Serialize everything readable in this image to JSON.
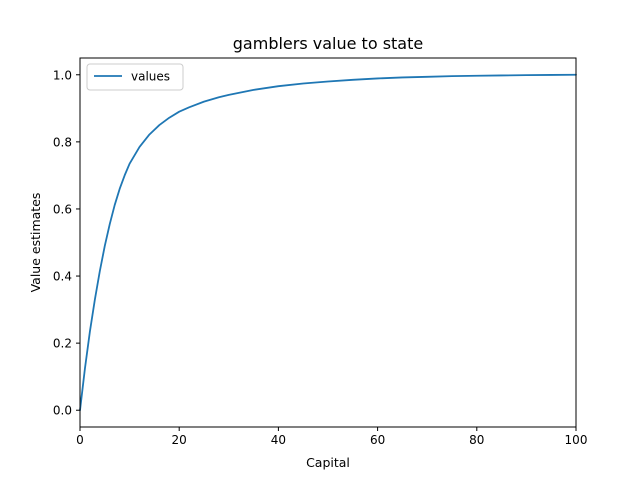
{
  "chart_data": {
    "type": "line",
    "title": "gamblers value to state",
    "xlabel": "Capital",
    "ylabel": "Value estimates",
    "xlim": [
      0,
      100
    ],
    "ylim": [
      -0.05,
      1.05
    ],
    "xticks": [
      "0",
      "20",
      "40",
      "60",
      "80",
      "100"
    ],
    "yticks": [
      "0.0",
      "0.2",
      "0.4",
      "0.6",
      "0.8",
      "1.0"
    ],
    "grid": false,
    "legend": "top-left",
    "series": [
      {
        "name": "values",
        "color": "#1f77b4",
        "x": [
          0,
          1,
          2,
          3,
          4,
          5,
          6,
          7,
          8,
          9,
          10,
          12,
          14,
          16,
          18,
          20,
          22,
          25,
          28,
          30,
          35,
          40,
          45,
          50,
          55,
          60,
          65,
          70,
          75,
          80,
          85,
          90,
          95,
          100
        ],
        "y": [
          0.0,
          0.125,
          0.235,
          0.33,
          0.415,
          0.49,
          0.555,
          0.612,
          0.66,
          0.7,
          0.735,
          0.785,
          0.822,
          0.85,
          0.872,
          0.89,
          0.903,
          0.92,
          0.933,
          0.94,
          0.955,
          0.966,
          0.974,
          0.98,
          0.985,
          0.989,
          0.992,
          0.994,
          0.996,
          0.997,
          0.998,
          0.999,
          0.9995,
          1.0
        ]
      }
    ]
  }
}
